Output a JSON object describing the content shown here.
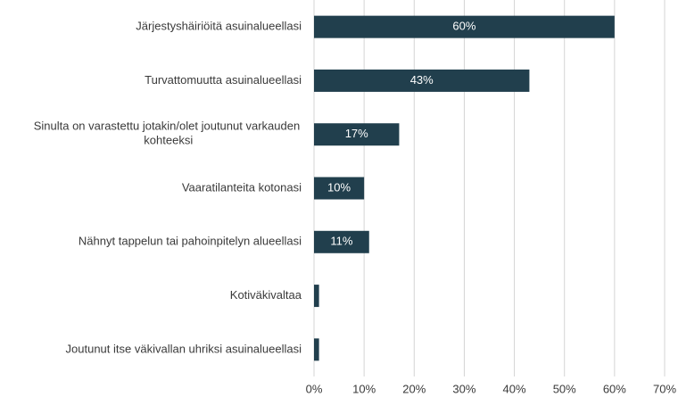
{
  "chart_data": {
    "type": "bar",
    "orientation": "horizontal",
    "categories": [
      "Järjestyshäiriöitä asuinalueellasi",
      "Turvattomuutta asuinalueellasi",
      "Sinulta on varastettu jotakin/olet joutunut varkauden kohteeksi",
      "Vaaratilanteita kotonasi",
      "Nähnyt tappelun tai pahoinpitelyn alueellasi",
      "Kotiväkivaltaa",
      "Joutunut itse väkivallan uhriksi asuinalueellasi"
    ],
    "values": [
      60,
      43,
      17,
      10,
      11,
      1,
      1
    ],
    "value_labels": [
      "60%",
      "43%",
      "17%",
      "10%",
      "11%",
      null,
      null
    ],
    "color": "#213f4d",
    "xlim": [
      0,
      70
    ],
    "xticks": [
      {
        "value": 0,
        "label": "0%"
      },
      {
        "value": 10,
        "label": "10%"
      },
      {
        "value": 20,
        "label": "20%"
      },
      {
        "value": 30,
        "label": "30%"
      },
      {
        "value": 40,
        "label": "40%"
      },
      {
        "value": 50,
        "label": "50%"
      },
      {
        "value": 60,
        "label": "60%"
      },
      {
        "value": 70,
        "label": "70%"
      }
    ],
    "grid": true
  }
}
